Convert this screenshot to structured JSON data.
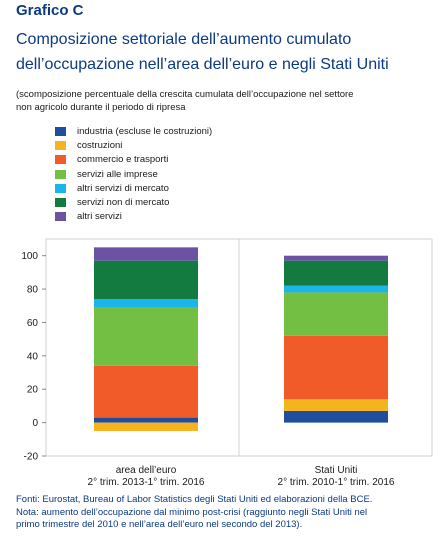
{
  "header": {
    "kicker": "Grafico C",
    "title_line1": "Composizione settoriale dell’aumento cumulato",
    "title_line2": "dell’occupazione nell’area dell’euro e negli Stati Uniti",
    "subtitle_line1": "(scomposizione percentuale della crescita cumulata dell’occupazione nel settore",
    "subtitle_line2": "non agricolo durante il periodo di ripresa"
  },
  "chart_data": {
    "type": "bar",
    "stacked": true,
    "categories": [
      [
        "area dell’euro",
        "2° trim. 2013-1° trim. 2016"
      ],
      [
        "Stati Uniti",
        "2° trim. 2010-1° trim. 2016"
      ]
    ],
    "series": [
      {
        "name": "industria (escluse le costruzioni)",
        "color": "#1f4e9c",
        "values": [
          3,
          7
        ]
      },
      {
        "name": "costruzioni",
        "color": "#f5b41e",
        "values": [
          -5,
          7
        ]
      },
      {
        "name": "commercio e trasporti",
        "color": "#f15a29",
        "values": [
          31,
          38
        ]
      },
      {
        "name": "servizi alle imprese",
        "color": "#72bf44",
        "values": [
          35,
          26
        ]
      },
      {
        "name": "altri servizi di mercato",
        "color": "#1cb5e9",
        "values": [
          5,
          4
        ]
      },
      {
        "name": "servizi non di mercato",
        "color": "#137b3f",
        "values": [
          23,
          15
        ]
      },
      {
        "name": "altri servizi",
        "color": "#6b52a3",
        "values": [
          8,
          3
        ]
      }
    ],
    "ylim": [
      -20,
      110
    ],
    "yticks": [
      -20,
      0,
      20,
      40,
      60,
      80,
      100
    ],
    "grid": false,
    "legend_position": "top-left"
  },
  "footer": {
    "line1": "Fonti: Eurostat, Bureau of Labor Statistics degli Stati Uniti ed elaborazioni della BCE.",
    "line2": "Nota: aumento dell’occupazione dal minimo post-crisi (raggiunto negli Stati Uniti nel",
    "line3": "primo trimestre del 2010 e nell’area dell’euro nel secondo del 2013)."
  }
}
